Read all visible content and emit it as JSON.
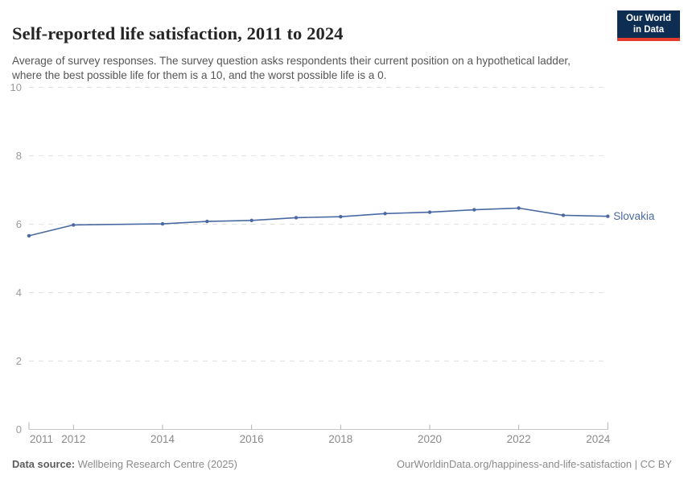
{
  "header": {
    "title": "Self-reported life satisfaction, 2011 to 2024",
    "subtitle": "Average of survey responses. The survey question asks respondents their current position on a hypothetical ladder, where the best possible life for them is a 10, and the worst possible life is a 0.",
    "logo": {
      "line1": "Our World",
      "line2": "in Data",
      "bg_color": "#0d2d52",
      "accent_color": "#e23b2e"
    }
  },
  "chart_data": {
    "type": "line",
    "title": "Self-reported life satisfaction, 2011 to 2024",
    "xlabel": "",
    "ylabel": "",
    "xlim": [
      2011,
      2024
    ],
    "ylim": [
      0,
      10
    ],
    "y_ticks": [
      0,
      2,
      4,
      6,
      8,
      10
    ],
    "x_ticks": [
      2011,
      2012,
      2014,
      2016,
      2018,
      2020,
      2022,
      2024
    ],
    "grid": "horizontal-dashed",
    "legend_position": "end-of-line-label",
    "series": [
      {
        "name": "Slovakia",
        "color": "#4a69a2",
        "points": [
          [
            2011,
            5.66
          ],
          [
            2012,
            5.98
          ],
          [
            2014,
            6.01
          ],
          [
            2015,
            6.08
          ],
          [
            2016,
            6.11
          ],
          [
            2017,
            6.19
          ],
          [
            2018,
            6.22
          ],
          [
            2019,
            6.31
          ],
          [
            2020,
            6.35
          ],
          [
            2021,
            6.42
          ],
          [
            2022,
            6.47
          ],
          [
            2023,
            6.26
          ],
          [
            2024,
            6.23
          ]
        ]
      }
    ]
  },
  "colors": {
    "grid": "#e1e1e1",
    "axis": "#c8c8c8",
    "tick": "#b2b2b2",
    "y_label": "#9b9b9b",
    "x_label": "#8a8a8a"
  },
  "footer": {
    "data_source_label": "Data source:",
    "data_source_value": " Wellbeing Research Centre (2025)",
    "license_text": "OurWorldinData.org/happiness-and-life-satisfaction | CC BY"
  }
}
